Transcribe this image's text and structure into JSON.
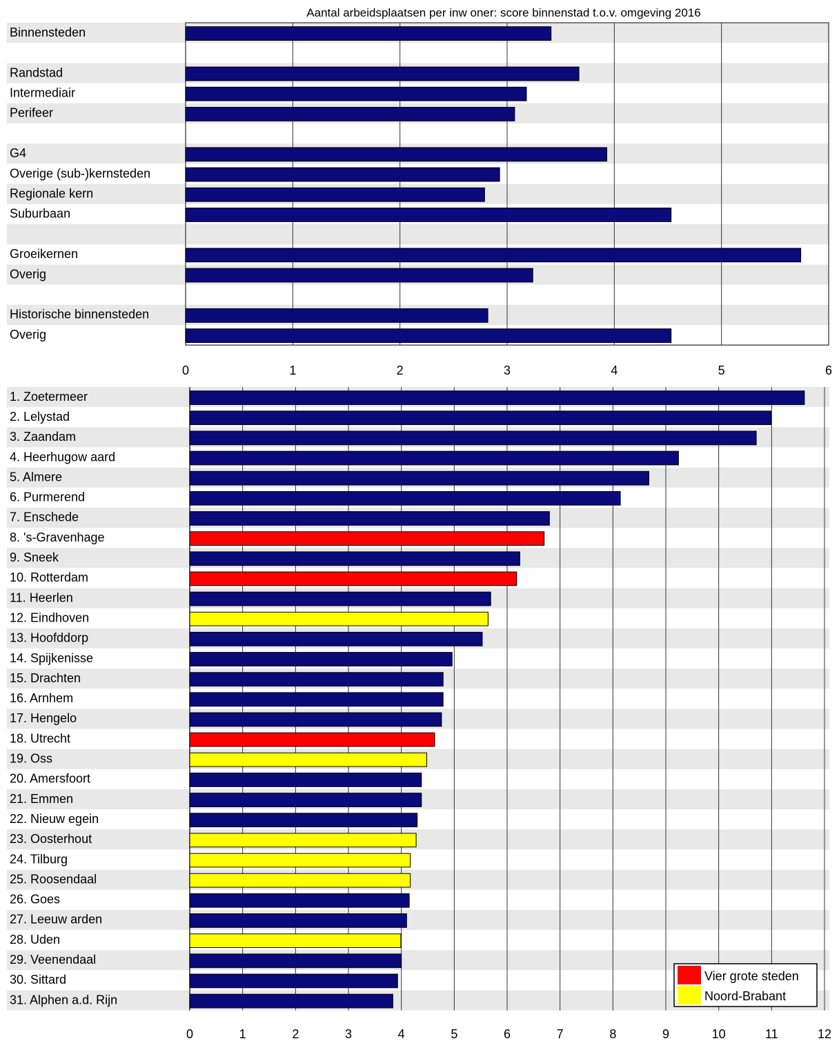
{
  "colors": {
    "navy": "#0a0a7a",
    "red": "#ff0000",
    "yellow": "#ffff00",
    "band": "#e8e8e8",
    "grid": "#333333"
  },
  "chart_data": [
    {
      "type": "bar",
      "orientation": "horizontal",
      "title": "Aantal arbeidsplaatsen per inw oner: score binnenstad t.o.v. omgeving 2016",
      "xlim": [
        0,
        6
      ],
      "xticks": [
        "0",
        "1",
        "2",
        "3",
        "4",
        "5",
        "6"
      ],
      "grid": "vertical",
      "rows": [
        {
          "label": "Binnensteden",
          "value": 3.41
        },
        {
          "label": "",
          "value": null
        },
        {
          "label": "Randstad",
          "value": 3.67
        },
        {
          "label": "Intermediair",
          "value": 3.18
        },
        {
          "label": "Perifeer",
          "value": 3.07
        },
        {
          "label": "",
          "value": null
        },
        {
          "label": "G4",
          "value": 3.93
        },
        {
          "label": "Overige (sub-)kernsteden",
          "value": 2.93
        },
        {
          "label": "Regionale kern",
          "value": 2.79
        },
        {
          "label": "Suburbaan",
          "value": 4.53
        },
        {
          "label": "",
          "value": null
        },
        {
          "label": "Groeikernen",
          "value": 5.74
        },
        {
          "label": "Overig",
          "value": 3.24
        },
        {
          "label": "",
          "value": null
        },
        {
          "label": "Historische binnensteden",
          "value": 2.82
        },
        {
          "label": "Overig",
          "value": 4.53
        }
      ]
    },
    {
      "type": "bar",
      "orientation": "horizontal",
      "xlim": [
        0,
        12
      ],
      "xticks": [
        "0",
        "1",
        "2",
        "3",
        "4",
        "5",
        "6",
        "7",
        "8",
        "9",
        "10",
        "11",
        "12"
      ],
      "grid": "vertical",
      "legend": {
        "position": "bottom-right",
        "entries": [
          {
            "label": "Vier grote steden",
            "color": "red"
          },
          {
            "label": "Noord-Brabant",
            "color": "yellow"
          }
        ]
      },
      "rows": [
        {
          "label": "1. Zoetermeer",
          "value": 11.62,
          "group": "navy"
        },
        {
          "label": "2. Lelystad",
          "value": 10.99,
          "group": "navy"
        },
        {
          "label": "3. Zaandam",
          "value": 10.71,
          "group": "navy"
        },
        {
          "label": "4. Heerhugow aard",
          "value": 9.24,
          "group": "navy"
        },
        {
          "label": "5. Almere",
          "value": 8.68,
          "group": "navy"
        },
        {
          "label": "6. Purmerend",
          "value": 8.14,
          "group": "navy"
        },
        {
          "label": "7. Enschede",
          "value": 6.8,
          "group": "navy"
        },
        {
          "label": "8. 's-Gravenhage",
          "value": 6.7,
          "group": "red"
        },
        {
          "label": "9. Sneek",
          "value": 6.24,
          "group": "navy"
        },
        {
          "label": "10. Rotterdam",
          "value": 6.18,
          "group": "red"
        },
        {
          "label": "11. Heerlen",
          "value": 5.69,
          "group": "navy"
        },
        {
          "label": "12. Eindhoven",
          "value": 5.64,
          "group": "yellow"
        },
        {
          "label": "13. Hoofddorp",
          "value": 5.53,
          "group": "navy"
        },
        {
          "label": "14. Spijkenisse",
          "value": 4.96,
          "group": "navy"
        },
        {
          "label": "15. Drachten",
          "value": 4.79,
          "group": "navy"
        },
        {
          "label": "16. Arnhem",
          "value": 4.79,
          "group": "navy"
        },
        {
          "label": "17. Hengelo",
          "value": 4.76,
          "group": "navy"
        },
        {
          "label": "18. Utrecht",
          "value": 4.63,
          "group": "red"
        },
        {
          "label": "19. Oss",
          "value": 4.48,
          "group": "yellow"
        },
        {
          "label": "20. Amersfoort",
          "value": 4.38,
          "group": "navy"
        },
        {
          "label": "21. Emmen",
          "value": 4.38,
          "group": "navy"
        },
        {
          "label": "22. Nieuw egein",
          "value": 4.3,
          "group": "navy"
        },
        {
          "label": "23. Oosterhout",
          "value": 4.28,
          "group": "yellow"
        },
        {
          "label": "24. Tilburg",
          "value": 4.17,
          "group": "yellow"
        },
        {
          "label": "25. Roosendaal",
          "value": 4.17,
          "group": "yellow"
        },
        {
          "label": "26. Goes",
          "value": 4.15,
          "group": "navy"
        },
        {
          "label": "27. Leeuw arden",
          "value": 4.1,
          "group": "navy"
        },
        {
          "label": "28. Uden",
          "value": 3.99,
          "group": "yellow"
        },
        {
          "label": "29. Veenendaal",
          "value": 4.0,
          "group": "navy"
        },
        {
          "label": "30. Sittard",
          "value": 3.93,
          "group": "navy"
        },
        {
          "label": "31. Alphen a.d. Rijn",
          "value": 3.84,
          "group": "navy"
        }
      ]
    }
  ]
}
